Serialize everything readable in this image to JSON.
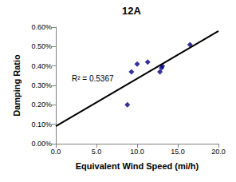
{
  "chart_data": {
    "type": "scatter",
    "title": "12A",
    "x_label": "Equivalent Wind Speed (mi/h)",
    "y_label": "Damping Ratio",
    "xlim": [
      0,
      20
    ],
    "xticks": [
      {
        "value": 0,
        "label": "0.0"
      },
      {
        "value": 5,
        "label": "5.0"
      },
      {
        "value": 10,
        "label": "10.0"
      },
      {
        "value": 15,
        "label": "15.0"
      },
      {
        "value": 20,
        "label": "20.0"
      }
    ],
    "ylim": [
      0,
      0.6
    ],
    "yticks": [
      {
        "value": 0,
        "label": "0.00%"
      },
      {
        "value": 0.1,
        "label": "0.10%"
      },
      {
        "value": 0.2,
        "label": "0.20%"
      },
      {
        "value": 0.3,
        "label": "0.30%"
      },
      {
        "value": 0.4,
        "label": "0.40%"
      },
      {
        "value": 0.5,
        "label": "0.50%"
      },
      {
        "value": 0.6,
        "label": "0.60%"
      }
    ],
    "grid": false,
    "annotations": [
      "R² = 0.5367"
    ],
    "series": [
      {
        "type": "scatter",
        "color": "#00007f",
        "marker": "diamond",
        "x": [
          8.8,
          9.3,
          10.0,
          11.3,
          12.8,
          13.0,
          13.1,
          16.5
        ],
        "values": [
          0.2,
          0.37,
          0.41,
          0.42,
          0.37,
          0.39,
          0.4,
          0.51
        ]
      },
      {
        "type": "line",
        "color": "#000000",
        "line_style": "solid",
        "x": [
          0,
          20
        ],
        "values": [
          0.09,
          0.58
        ]
      }
    ]
  }
}
